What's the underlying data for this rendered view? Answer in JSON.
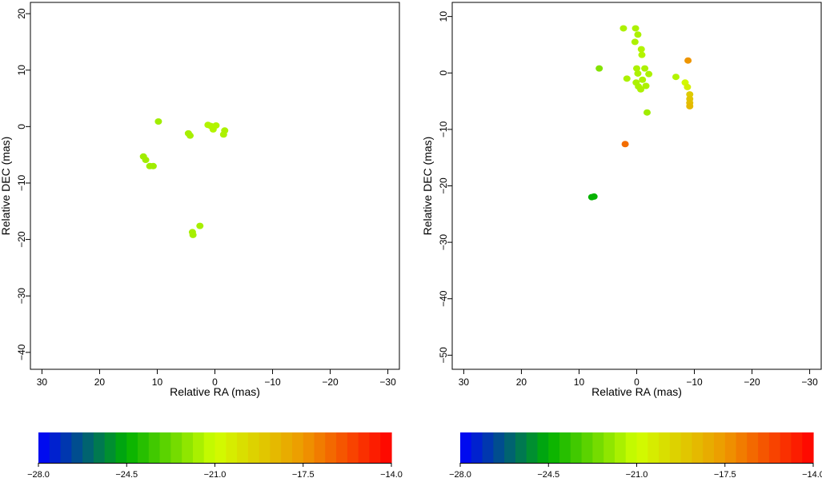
{
  "chart_data": [
    {
      "type": "scatter",
      "title": "",
      "xlabel": "Relative RA (mas)",
      "ylabel": "Relative DEC (mas)",
      "xlim": [
        32,
        -32
      ],
      "ylim": [
        -43,
        22
      ],
      "x_ticks": [
        30,
        20,
        10,
        0,
        -10,
        -20,
        -30
      ],
      "y_ticks": [
        20,
        10,
        0,
        -10,
        -20,
        -30,
        -40
      ],
      "color_scale": {
        "min": -28.0,
        "max": -14.0,
        "colors": [
          "#0000ff",
          "#00b000",
          "#d0ff00",
          "#ee9900",
          "#ff0000"
        ]
      },
      "points": [
        {
          "x": 9.8,
          "y": 0.9,
          "c": -21.8
        },
        {
          "x": 4.6,
          "y": -1.2,
          "c": -21.7
        },
        {
          "x": 4.3,
          "y": -1.6,
          "c": -21.7
        },
        {
          "x": 1.2,
          "y": 0.3,
          "c": -21.5
        },
        {
          "x": 0.7,
          "y": 0.1,
          "c": -21.5
        },
        {
          "x": 0.3,
          "y": -0.5,
          "c": -21.5
        },
        {
          "x": -0.2,
          "y": 0.2,
          "c": -21.5
        },
        {
          "x": -1.7,
          "y": -0.7,
          "c": -21.6
        },
        {
          "x": -1.5,
          "y": -1.4,
          "c": -21.6
        },
        {
          "x": 12.4,
          "y": -5.3,
          "c": -21.8
        },
        {
          "x": 12.0,
          "y": -5.9,
          "c": -21.8
        },
        {
          "x": 11.3,
          "y": -7.0,
          "c": -21.8
        },
        {
          "x": 10.7,
          "y": -7.0,
          "c": -21.8
        },
        {
          "x": 2.6,
          "y": -17.6,
          "c": -21.7
        },
        {
          "x": 3.9,
          "y": -18.7,
          "c": -21.7
        },
        {
          "x": 3.8,
          "y": -19.2,
          "c": -21.7
        }
      ]
    },
    {
      "type": "scatter",
      "title": "",
      "xlabel": "Relative RA (mas)",
      "ylabel": "Relative DEC (mas)",
      "xlim": [
        32,
        -32
      ],
      "ylim": [
        -52.5,
        12.5
      ],
      "x_ticks": [
        30,
        20,
        10,
        0,
        -10,
        -20,
        -30
      ],
      "y_ticks": [
        10,
        0,
        -10,
        -20,
        -30,
        -40,
        -50
      ],
      "color_scale": {
        "min": -28.0,
        "max": -14.0,
        "colors": [
          "#0000ff",
          "#00b000",
          "#d0ff00",
          "#ee9900",
          "#ff0000"
        ]
      },
      "points": [
        {
          "x": 2.3,
          "y": 7.9,
          "c": -21.6
        },
        {
          "x": 0.2,
          "y": 7.9,
          "c": -21.6
        },
        {
          "x": -0.2,
          "y": 6.8,
          "c": -21.6
        },
        {
          "x": 0.3,
          "y": 5.5,
          "c": -21.6
        },
        {
          "x": -0.8,
          "y": 4.2,
          "c": -21.5
        },
        {
          "x": -0.9,
          "y": 3.2,
          "c": -21.5
        },
        {
          "x": 6.5,
          "y": 0.8,
          "c": -22.3
        },
        {
          "x": 1.7,
          "y": -1.0,
          "c": -21.6
        },
        {
          "x": 0.0,
          "y": 0.8,
          "c": -21.6
        },
        {
          "x": -0.2,
          "y": -0.1,
          "c": -21.6
        },
        {
          "x": -1.0,
          "y": -1.2,
          "c": -21.6
        },
        {
          "x": -1.4,
          "y": 0.8,
          "c": -21.6
        },
        {
          "x": -2.1,
          "y": -0.2,
          "c": -21.6
        },
        {
          "x": 0.1,
          "y": -1.7,
          "c": -21.6
        },
        {
          "x": -0.3,
          "y": -2.4,
          "c": -21.6
        },
        {
          "x": -0.7,
          "y": -2.9,
          "c": -21.6
        },
        {
          "x": -1.6,
          "y": -2.3,
          "c": -21.6
        },
        {
          "x": -1.8,
          "y": -7.0,
          "c": -21.8
        },
        {
          "x": -6.8,
          "y": -0.7,
          "c": -21.5
        },
        {
          "x": -8.4,
          "y": -1.7,
          "c": -20.8
        },
        {
          "x": -8.8,
          "y": -2.5,
          "c": -20.5
        },
        {
          "x": -8.9,
          "y": 2.2,
          "c": -17.4
        },
        {
          "x": -9.2,
          "y": -3.8,
          "c": -19.2
        },
        {
          "x": -9.2,
          "y": -4.6,
          "c": -19.0
        },
        {
          "x": -9.2,
          "y": -5.3,
          "c": -18.8
        },
        {
          "x": -9.2,
          "y": -5.9,
          "c": -18.6
        },
        {
          "x": 2.0,
          "y": -12.6,
          "c": -16.5
        },
        {
          "x": 7.8,
          "y": -22.0,
          "c": -24.4
        },
        {
          "x": 7.4,
          "y": -21.9,
          "c": -24.4
        }
      ]
    }
  ],
  "colorbars": [
    {
      "ticks": [
        "-28.0",
        "-24.5",
        "-21.0",
        "-17.5",
        "-14.0"
      ]
    },
    {
      "ticks": [
        "-28.0",
        "-24.5",
        "-21.0",
        "-17.5",
        "-14.0"
      ]
    }
  ]
}
